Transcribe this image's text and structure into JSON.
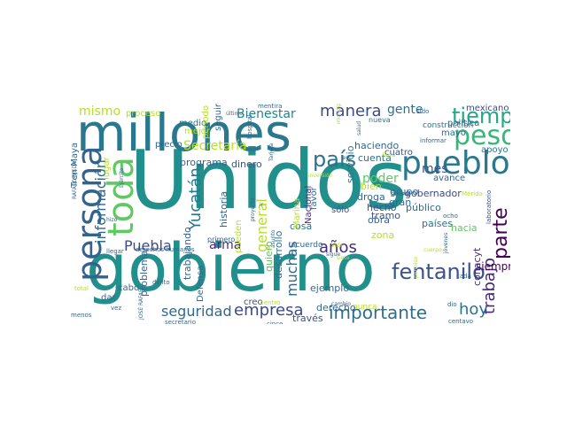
{
  "words": [
    {
      "text": "Unidos",
      "color": "#21908c"
    },
    {
      "text": "gobierno",
      "color": "#21908c"
    },
    {
      "text": "millones",
      "color": "#2a788e"
    },
    {
      "text": "pueblo",
      "color": "#2a788e"
    },
    {
      "text": "persona",
      "color": "#33638d"
    },
    {
      "text": "peso",
      "color": "#35b779"
    },
    {
      "text": "tiempo",
      "color": "#22a884"
    },
    {
      "text": "toda",
      "color": "#5ec962"
    },
    {
      "text": "país",
      "color": "#2c728e"
    },
    {
      "text": "fentanilo",
      "color": "#3b528b"
    },
    {
      "text": "importante",
      "color": "#2d708e"
    },
    {
      "text": "parte",
      "color": "#440154"
    },
    {
      "text": "trabajo",
      "color": "#482878"
    },
    {
      "text": "empresa",
      "color": "#3e4989"
    },
    {
      "text": "seguridad",
      "color": "#31688e"
    },
    {
      "text": "hoy",
      "color": "#2c728e"
    },
    {
      "text": "mismo",
      "color": "#b5de2b"
    },
    {
      "text": "manera",
      "color": "#3e4989"
    },
    {
      "text": "Bienestar",
      "color": "#26828e"
    },
    {
      "text": "gente",
      "color": "#2c728e"
    },
    {
      "text": "Secretaría",
      "color": "#b5de2b"
    },
    {
      "text": "Yucatán",
      "color": "#2a788e"
    },
    {
      "text": "información",
      "color": "#31688e"
    },
    {
      "text": "Puebla",
      "color": "#3e4989"
    },
    {
      "text": "arma",
      "color": "#472d7b"
    },
    {
      "text": "general",
      "color": "#b5de2b"
    },
    {
      "text": "años",
      "color": "#482878"
    },
    {
      "text": "poder",
      "color": "#5ec962"
    },
    {
      "text": "mes",
      "color": "#3b528b"
    },
    {
      "text": "muchas",
      "color": "#31688e"
    },
    {
      "text": "siempre",
      "color": "#440154"
    },
    {
      "text": "proceso",
      "color": "#b5de2b"
    },
    {
      "text": "medio",
      "color": "#2c728e"
    },
    {
      "text": "mejor",
      "color": "#b5de2b"
    },
    {
      "text": "precio",
      "color": "#31688e"
    },
    {
      "text": "programa",
      "color": "#31688e"
    },
    {
      "text": "dinero",
      "color": "#3b528b"
    },
    {
      "text": "haciendo",
      "color": "#31688e"
    },
    {
      "text": "cuenta",
      "color": "#2c728e"
    },
    {
      "text": "apoyo",
      "color": "#2c728e"
    },
    {
      "text": "cuatro",
      "color": "#3b528b"
    },
    {
      "text": "mexicano",
      "color": "#3e4989"
    },
    {
      "text": "política",
      "color": "#31688e"
    },
    {
      "text": "mayo",
      "color": "#31688e"
    },
    {
      "text": "construcción",
      "color": "#2c728e"
    },
    {
      "text": "avance",
      "color": "#31688e"
    },
    {
      "text": "gobernador",
      "color": "#3e4989"
    },
    {
      "text": "hecho",
      "color": "#3b528b"
    },
    {
      "text": "obra",
      "color": "#31688e"
    },
    {
      "text": "público",
      "color": "#31688e"
    },
    {
      "text": "países",
      "color": "#2c728e"
    },
    {
      "text": "zona",
      "color": "#b5de2b"
    },
    {
      "text": "tramo",
      "color": "#3b528b"
    },
    {
      "text": "grupo",
      "color": "#2c728e"
    },
    {
      "text": "gran",
      "color": "#31688e"
    },
    {
      "text": "servicio",
      "color": "#2a788e"
    },
    {
      "text": "droga",
      "color": "#31688e"
    },
    {
      "text": "bien",
      "color": "#b5de2b"
    },
    {
      "text": "hacia",
      "color": "#5ec962"
    },
    {
      "text": "conacyt",
      "color": "#472d7b"
    },
    {
      "text": "ejemplo",
      "color": "#31688e"
    },
    {
      "text": "derecho",
      "color": "#31688e"
    },
    {
      "text": "través",
      "color": "#3b528b"
    },
    {
      "text": "cosa",
      "color": "#2c728e"
    },
    {
      "text": "quiero",
      "color": "#5ec962"
    },
    {
      "text": "historia",
      "color": "#31688e"
    },
    {
      "text": "desarrollo",
      "color": "#2c728e"
    },
    {
      "text": "Marina",
      "color": "#b5de2b"
    },
    {
      "text": "Nacional",
      "color": "#472d7b"
    },
    {
      "text": "favor",
      "color": "#31688e"
    },
    {
      "text": "sólo",
      "color": "#3b528b"
    },
    {
      "text": "problema",
      "color": "#31688e"
    },
    {
      "text": "trabajando",
      "color": "#31688e"
    },
    {
      "text": "Defensa",
      "color": "#31688e"
    },
    {
      "text": "cabo",
      "color": "#31688e"
    },
    {
      "text": "dar",
      "color": "#31688e"
    },
    {
      "text": "creo",
      "color": "#3b528b"
    },
    {
      "text": "acuerdo",
      "color": "#31688e"
    },
    {
      "text": "nunca",
      "color": "#b5de2b"
    },
    {
      "text": "Tren Maya",
      "color": "#31688e"
    },
    {
      "text": "lugar",
      "color": "#b5de2b"
    },
    {
      "text": "periodo",
      "color": "#b5de2b"
    },
    {
      "text": "seguir",
      "color": "#31688e"
    },
    {
      "text": "pueden",
      "color": "#b5de2b"
    },
    {
      "text": "primero",
      "color": "#31688e"
    },
    {
      "text": "mentira",
      "color": "#31688e"
    },
    {
      "text": "hospital",
      "color": "#31688e"
    },
    {
      "text": "nueva",
      "color": "#2c728e"
    },
    {
      "text": "sido",
      "color": "#31688e"
    },
    {
      "text": "informar",
      "color": "#31688e"
    },
    {
      "text": "Mérida",
      "color": "#b5de2b"
    },
    {
      "text": "laboratorio",
      "color": "#3e4989"
    },
    {
      "text": "buena",
      "color": "#31688e"
    },
    {
      "text": "ocho",
      "color": "#31688e"
    },
    {
      "text": "dio",
      "color": "#31688e"
    },
    {
      "text": "cada",
      "color": "#31688e"
    },
    {
      "text": "centavo",
      "color": "#31688e"
    },
    {
      "text": "dólares",
      "color": "#31688e"
    },
    {
      "text": "cinco",
      "color": "#31688e"
    },
    {
      "text": "centro",
      "color": "#b5de2b"
    },
    {
      "text": "secretario",
      "color": "#31688e"
    },
    {
      "text": "vez",
      "color": "#31688e"
    },
    {
      "text": "menos",
      "color": "#31688e"
    },
    {
      "text": "total",
      "color": "#b5de2b"
    },
    {
      "text": "delito",
      "color": "#31688e"
    },
    {
      "text": "llegar",
      "color": "#31688e"
    },
    {
      "text": "JOSÉ RAFAEL",
      "color": "#31688e"
    },
    {
      "text": "RAFAEL OJEDA",
      "color": "#31688e"
    },
    {
      "text": "Ejército",
      "color": "#31688e"
    },
    {
      "text": "hizo",
      "color": "#31688e"
    },
    {
      "text": "ir",
      "color": "#31688e"
    },
    {
      "text": "ley",
      "color": "#31688e"
    },
    {
      "text": "salud",
      "color": "#31688e"
    },
    {
      "text": "sigue",
      "color": "#31688e"
    },
    {
      "text": "vida",
      "color": "#b5de2b"
    },
    {
      "text": "cambio",
      "color": "#31688e"
    },
    {
      "text": "lleva",
      "color": "#b5de2b"
    },
    {
      "text": "sino",
      "color": "#31688e"
    },
    {
      "text": "asunto",
      "color": "#31688e"
    },
    {
      "text": "proyecto",
      "color": "#31688e"
    },
    {
      "text": "último",
      "color": "#31688e"
    },
    {
      "text": "Tarjeta",
      "color": "#31688e"
    },
    {
      "text": "inversión",
      "color": "#b5de2b"
    },
    {
      "text": "siete",
      "color": "#b5de2b"
    },
    {
      "text": "jóvenes",
      "color": "#31688e"
    },
    {
      "text": "permiso",
      "color": "#b5de2b"
    },
    {
      "text": "cuerpo",
      "color": "#b5de2b"
    },
    {
      "text": "municipio",
      "color": "#b5de2b"
    },
    {
      "text": "derechos humanos",
      "color": "#31688e"
    }
  ]
}
